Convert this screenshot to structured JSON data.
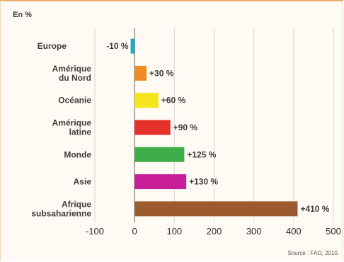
{
  "chart_data": {
    "type": "bar",
    "orientation": "horizontal",
    "unit_label": "En %",
    "source": "Source : FAO, 2010.",
    "categories": [
      [
        "Europe"
      ],
      [
        "Amérique",
        "du Nord"
      ],
      [
        "Océanie"
      ],
      [
        "Amérique",
        "latine"
      ],
      [
        "Monde"
      ],
      [
        "Asie"
      ],
      [
        "Afrique",
        "subsaharienne"
      ]
    ],
    "values": [
      -10,
      30,
      60,
      90,
      125,
      130,
      410
    ],
    "value_labels": [
      "-10 %",
      "+30 %",
      "+60 %",
      "+90 %",
      "+125 %",
      "+130 %",
      "+410 %"
    ],
    "colors": [
      "#1ea8c9",
      "#f08a24",
      "#f6e51c",
      "#e8302a",
      "#3fae4a",
      "#c81e97",
      "#9c5a2f"
    ],
    "xlim": [
      -100,
      500
    ],
    "xticks": [
      -100,
      0,
      100,
      200,
      300,
      400,
      500
    ],
    "xtick_labels": [
      "-100",
      "0",
      "100",
      "200",
      "300",
      "400",
      "500"
    ],
    "grid": "vertical",
    "legend": "none"
  }
}
